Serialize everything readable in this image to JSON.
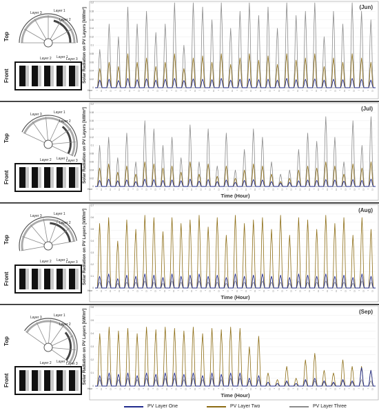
{
  "figure": {
    "series_names": [
      "PV Layer One",
      "PV Layer Two",
      "PV Layer Three"
    ],
    "series_colors": [
      "#1f2a8c",
      "#8b6b12",
      "#8a8a8a"
    ],
    "hour_tick_label": "Hour",
    "ylabel": "Solar Radiation on PV Layers [kW/m²]",
    "xlabel": "Time (Hour)"
  },
  "diagram_labels": {
    "top": "Top",
    "front": "Front",
    "layer1": "Layer 1",
    "layer2": "Layer 2",
    "layer3": "Layer 3"
  },
  "chart_data": [
    {
      "type": "line",
      "title": "(Jun)",
      "ylabel": "Solar Radiation on PV Layers [kW/m²]",
      "xlabel": "",
      "ylim": [
        0,
        0.2
      ],
      "yticks": [
        0,
        0.02,
        0.04,
        0.06,
        0.08,
        0.1,
        0.12,
        0.14,
        0.16,
        0.18,
        0.2
      ],
      "days": 30,
      "series": [
        {
          "name": "PV Layer One",
          "values": [
            0.018,
            0.02,
            0.017,
            0.022,
            0.019,
            0.021,
            0.018,
            0.02,
            0.022,
            0.017,
            0.021,
            0.02,
            0.019,
            0.022,
            0.018,
            0.02,
            0.021,
            0.019,
            0.02,
            0.018,
            0.022,
            0.019,
            0.02,
            0.021,
            0.018,
            0.02,
            0.019,
            0.022,
            0.02,
            0.018
          ]
        },
        {
          "name": "PV Layer Two",
          "values": [
            0.045,
            0.06,
            0.05,
            0.08,
            0.06,
            0.07,
            0.05,
            0.06,
            0.08,
            0.045,
            0.07,
            0.075,
            0.06,
            0.08,
            0.055,
            0.07,
            0.08,
            0.065,
            0.075,
            0.055,
            0.08,
            0.065,
            0.07,
            0.08,
            0.05,
            0.07,
            0.06,
            0.08,
            0.07,
            0.06
          ]
        },
        {
          "name": "PV Layer Three",
          "values": [
            0.09,
            0.15,
            0.12,
            0.19,
            0.15,
            0.18,
            0.13,
            0.15,
            0.2,
            0.1,
            0.2,
            0.19,
            0.16,
            0.2,
            0.14,
            0.18,
            0.2,
            0.17,
            0.19,
            0.14,
            0.2,
            0.17,
            0.18,
            0.2,
            0.12,
            0.18,
            0.15,
            0.2,
            0.18,
            0.16
          ]
        }
      ]
    },
    {
      "type": "line",
      "title": "(Jul)",
      "ylabel": "Solar Radiation on PV Layers [kW/m²]",
      "xlabel": "Time (Hour)",
      "ylim": [
        0,
        0.2
      ],
      "days": 31,
      "series": [
        {
          "name": "PV Layer One",
          "values": [
            0.015,
            0.018,
            0.014,
            0.016,
            0.012,
            0.018,
            0.017,
            0.015,
            0.016,
            0.014,
            0.018,
            0.013,
            0.017,
            0.012,
            0.016,
            0.01,
            0.015,
            0.017,
            0.016,
            0.012,
            0.008,
            0.01,
            0.014,
            0.016,
            0.015,
            0.017,
            0.016,
            0.013,
            0.017,
            0.015,
            0.018
          ]
        },
        {
          "name": "PV Layer Two",
          "values": [
            0.045,
            0.055,
            0.035,
            0.05,
            0.03,
            0.06,
            0.055,
            0.045,
            0.05,
            0.035,
            0.06,
            0.03,
            0.055,
            0.025,
            0.05,
            0.02,
            0.04,
            0.055,
            0.05,
            0.03,
            0.012,
            0.02,
            0.04,
            0.05,
            0.045,
            0.06,
            0.05,
            0.03,
            0.055,
            0.045,
            0.06
          ]
        },
        {
          "name": "PV Layer Three",
          "values": [
            0.1,
            0.12,
            0.07,
            0.13,
            0.06,
            0.16,
            0.14,
            0.1,
            0.12,
            0.07,
            0.15,
            0.06,
            0.14,
            0.05,
            0.13,
            0.04,
            0.09,
            0.14,
            0.12,
            0.06,
            0.03,
            0.04,
            0.09,
            0.13,
            0.11,
            0.17,
            0.12,
            0.06,
            0.16,
            0.1,
            0.17
          ]
        }
      ]
    },
    {
      "type": "line",
      "title": "(Aug)",
      "ylabel": "Solar Radiation on PV Layers [kW/m²]",
      "xlabel": "Time (Hour)",
      "ylim": [
        0,
        0.7
      ],
      "days": 31,
      "series": [
        {
          "name": "PV Layer One",
          "values": [
            0.1,
            0.12,
            0.08,
            0.11,
            0.1,
            0.12,
            0.11,
            0.09,
            0.12,
            0.1,
            0.11,
            0.12,
            0.1,
            0.11,
            0.09,
            0.12,
            0.1,
            0.11,
            0.12,
            0.1,
            0.11,
            0.09,
            0.12,
            0.11,
            0.1,
            0.12,
            0.1,
            0.11,
            0.09,
            0.12,
            0.1
          ]
        },
        {
          "name": "PV Layer Two",
          "values": [
            0.55,
            0.6,
            0.4,
            0.58,
            0.5,
            0.62,
            0.6,
            0.48,
            0.6,
            0.55,
            0.58,
            0.62,
            0.52,
            0.6,
            0.45,
            0.62,
            0.55,
            0.58,
            0.6,
            0.5,
            0.62,
            0.45,
            0.6,
            0.58,
            0.5,
            0.62,
            0.55,
            0.6,
            0.45,
            0.6,
            0.5
          ]
        },
        {
          "name": "PV Layer Three",
          "values": [
            0.05,
            0.06,
            0.04,
            0.05,
            0.05,
            0.06,
            0.05,
            0.04,
            0.06,
            0.05,
            0.05,
            0.06,
            0.05,
            0.05,
            0.04,
            0.06,
            0.05,
            0.05,
            0.06,
            0.05,
            0.05,
            0.04,
            0.06,
            0.05,
            0.05,
            0.06,
            0.05,
            0.05,
            0.04,
            0.06,
            0.05
          ]
        }
      ]
    },
    {
      "type": "line",
      "title": "(Sep)",
      "ylabel": "Solar Radiation on PV Layers [kW/m²]",
      "xlabel": "Time (Hour)",
      "ylim": [
        0,
        0.6
      ],
      "days": 30,
      "series": [
        {
          "name": "PV Layer One",
          "values": [
            0.08,
            0.1,
            0.09,
            0.1,
            0.08,
            0.1,
            0.09,
            0.1,
            0.1,
            0.09,
            0.1,
            0.08,
            0.1,
            0.09,
            0.1,
            0.1,
            0.06,
            0.08,
            0.03,
            0.02,
            0.04,
            0.02,
            0.05,
            0.06,
            0.04,
            0.03,
            0.05,
            0.04,
            0.14,
            0.12
          ]
        },
        {
          "name": "PV Layer Two",
          "values": [
            0.4,
            0.45,
            0.42,
            0.44,
            0.4,
            0.45,
            0.43,
            0.45,
            0.44,
            0.42,
            0.45,
            0.4,
            0.44,
            0.43,
            0.45,
            0.44,
            0.3,
            0.38,
            0.1,
            0.05,
            0.15,
            0.06,
            0.2,
            0.25,
            0.12,
            0.1,
            0.2,
            0.15,
            0.15,
            0.12
          ]
        },
        {
          "name": "PV Layer Three",
          "values": [
            0.05,
            0.06,
            0.05,
            0.06,
            0.05,
            0.06,
            0.05,
            0.06,
            0.06,
            0.05,
            0.06,
            0.05,
            0.06,
            0.05,
            0.06,
            0.06,
            0.04,
            0.05,
            0.03,
            0.02,
            0.03,
            0.02,
            0.04,
            0.04,
            0.03,
            0.02,
            0.04,
            0.03,
            0.05,
            0.04
          ]
        }
      ]
    }
  ]
}
